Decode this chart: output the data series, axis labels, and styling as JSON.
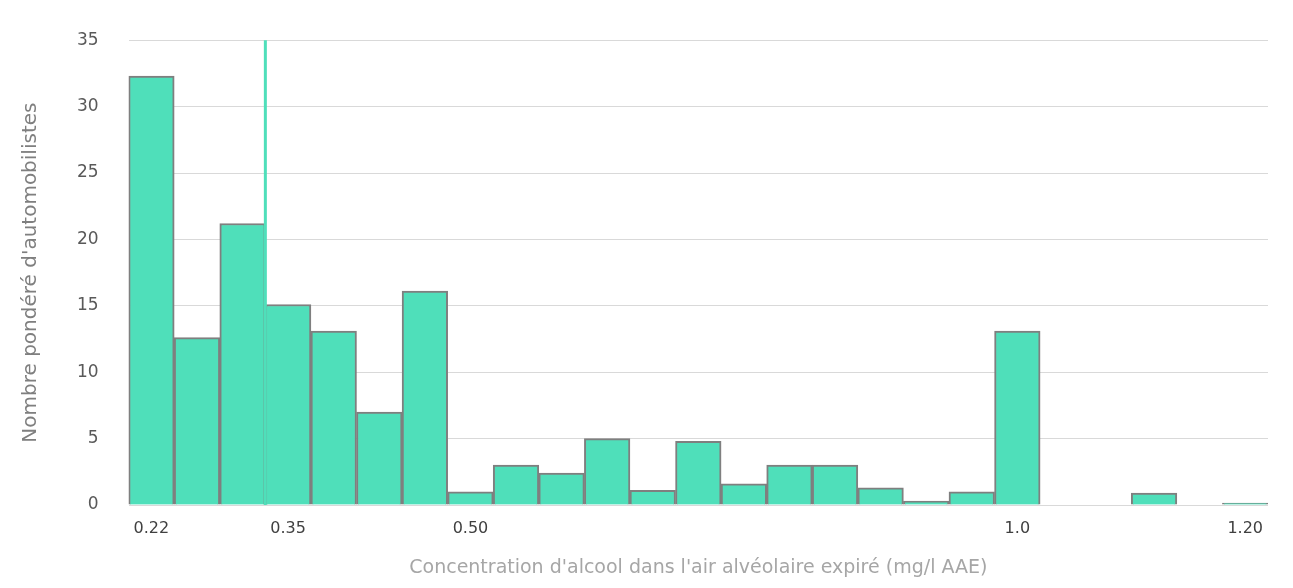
{
  "chart_data": {
    "type": "bar",
    "xlabel": "Concentration d'alcool dans l'air alvéolaire expiré (mg/l AAE)",
    "ylabel": "Nombre pondéré d'automobilistes",
    "categories": [
      "0.22",
      null,
      null,
      "0.35",
      null,
      null,
      null,
      "0.50",
      null,
      null,
      null,
      null,
      null,
      null,
      null,
      null,
      null,
      null,
      null,
      "1.0",
      null,
      null,
      null,
      null,
      "1.20"
    ],
    "values": [
      32.3,
      12.6,
      21.2,
      15.1,
      13.1,
      7.0,
      16.1,
      1.0,
      3.0,
      2.4,
      5.0,
      1.1,
      4.8,
      1.6,
      3.0,
      3.0,
      1.3,
      0.3,
      1.0,
      13.1,
      0,
      0,
      0.9,
      0,
      0.15
    ],
    "color": "#4fdfba",
    "ylim": [
      0,
      35
    ],
    "yticks": [
      0,
      5,
      10,
      15,
      20,
      25,
      30,
      35
    ],
    "grid": "y",
    "ref_lines": [
      {
        "axis": "x",
        "value": "0.35",
        "color": "#4fdfba"
      }
    ]
  }
}
